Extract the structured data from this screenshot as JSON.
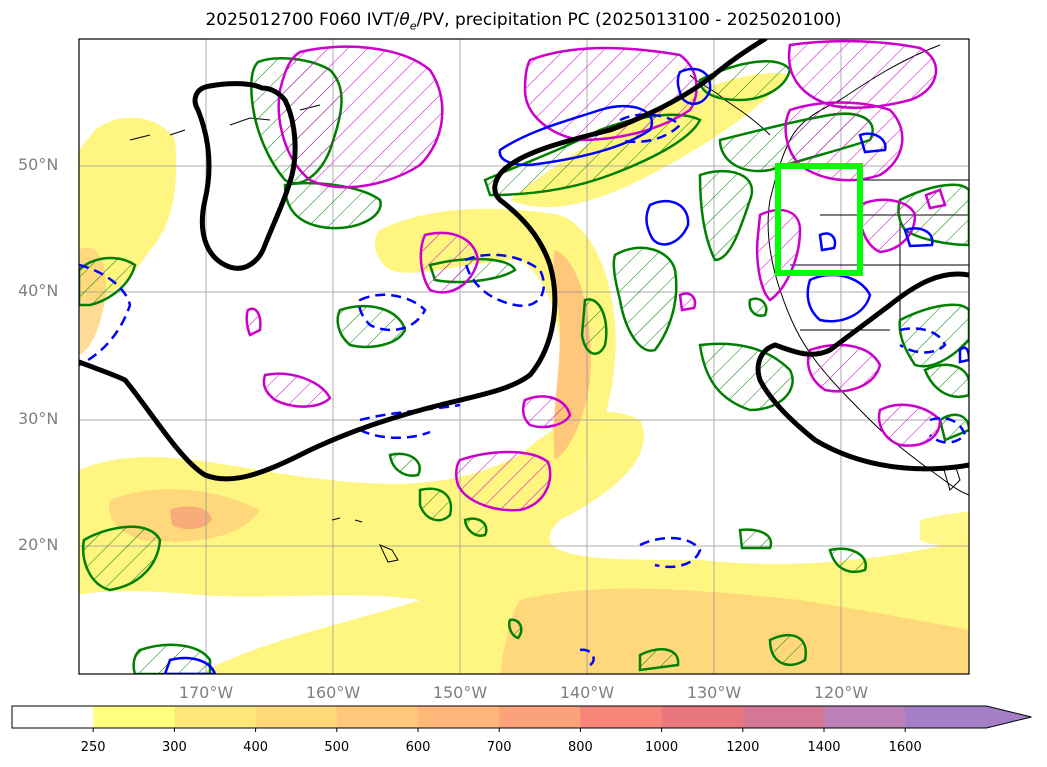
{
  "title": {
    "prefix": "2025012700 F060 IVT/",
    "theta": "θ",
    "theta_sub": "e",
    "suffix": "/PV, precipitation PC (2025013100 - 2025020100)"
  },
  "map": {
    "lat_labels": [
      "50°N",
      "40°N",
      "30°N",
      "20°N"
    ],
    "lon_labels": [
      "170°W",
      "160°W",
      "150°W",
      "140°W",
      "130°W",
      "120°W"
    ],
    "extent": {
      "lon_min": -180,
      "lon_max": -110,
      "lat_min": 10,
      "lat_max": 60
    },
    "box": {
      "lon": [
        -125,
        -120.5
      ],
      "lat": [
        41.5,
        50
      ]
    },
    "colors": {
      "ivt_low": "#fffa78",
      "ivt_mid": "#ffd37a",
      "ivt_high": "#f9a07a",
      "pv_contour": "#000000",
      "theta_contour": "#008000",
      "precip_pos": "#cc00cc",
      "precip_neg": "#0000ff",
      "box": "#00ff00"
    }
  },
  "colorbar": {
    "ticks": [
      "250",
      "300",
      "400",
      "500",
      "600",
      "700",
      "800",
      "1000",
      "1200",
      "1400",
      "1600"
    ],
    "colors": [
      "#ffffff",
      "#ffff80",
      "#ffe87a",
      "#ffd87a",
      "#ffc87a",
      "#ffb87a",
      "#fca27a",
      "#f7857a",
      "#e9777e",
      "#d47896",
      "#bd7fb8",
      "#a47fc8"
    ]
  }
}
